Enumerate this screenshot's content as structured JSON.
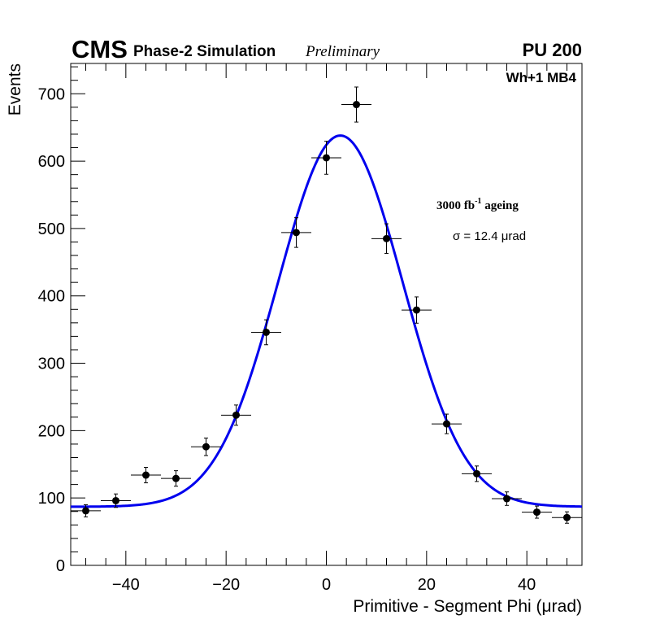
{
  "header": {
    "experiment": "CMS",
    "subtitle": "Phase-2 Simulation",
    "status": "Preliminary",
    "pileup": "PU 200"
  },
  "annotations": {
    "region": "Wh+1 MB4",
    "ageing_main": "3000 fb",
    "ageing_exp": "-1",
    "ageing_suffix": " ageing",
    "sigma": "σ = 12.4 μrad"
  },
  "chart_data": {
    "type": "scatter",
    "title": "",
    "xlabel": "Primitive - Segment Phi (μrad)",
    "ylabel": "Events",
    "xlim": [
      -51,
      51
    ],
    "ylim": [
      0,
      745
    ],
    "xticks": [
      -40,
      -20,
      0,
      20,
      40
    ],
    "yticks": [
      0,
      100,
      200,
      300,
      400,
      500,
      600,
      700
    ],
    "xtick_labels": [
      "−40",
      "−20",
      "0",
      "20",
      "40"
    ],
    "ytick_labels": [
      "0",
      "100",
      "200",
      "300",
      "400",
      "500",
      "600",
      "700"
    ],
    "bin_half_width": 3,
    "points": [
      {
        "x": -48,
        "y": 81,
        "yerr": 9
      },
      {
        "x": -42,
        "y": 96,
        "yerr": 10
      },
      {
        "x": -36,
        "y": 134,
        "yerr": 11.5
      },
      {
        "x": -30,
        "y": 129,
        "yerr": 11.5
      },
      {
        "x": -24,
        "y": 176,
        "yerr": 13
      },
      {
        "x": -18,
        "y": 223,
        "yerr": 15
      },
      {
        "x": -12,
        "y": 346,
        "yerr": 18.5
      },
      {
        "x": -6,
        "y": 494,
        "yerr": 22
      },
      {
        "x": 0,
        "y": 605,
        "yerr": 24.5
      },
      {
        "x": 6,
        "y": 684,
        "yerr": 26
      },
      {
        "x": 12,
        "y": 485,
        "yerr": 22
      },
      {
        "x": 18,
        "y": 379,
        "yerr": 19.5
      },
      {
        "x": 24,
        "y": 210,
        "yerr": 14.5
      },
      {
        "x": 30,
        "y": 136,
        "yerr": 11.5
      },
      {
        "x": 36,
        "y": 99,
        "yerr": 10
      },
      {
        "x": 42,
        "y": 79,
        "yerr": 9
      },
      {
        "x": 48,
        "y": 71,
        "yerr": 8.5
      }
    ],
    "fit": {
      "function": "gaussian_plus_constant",
      "constant": 87,
      "amplitude": 551,
      "mean": 2.8,
      "sigma": 12.4,
      "color": "#0000ee"
    },
    "marker_color": "#000000"
  }
}
